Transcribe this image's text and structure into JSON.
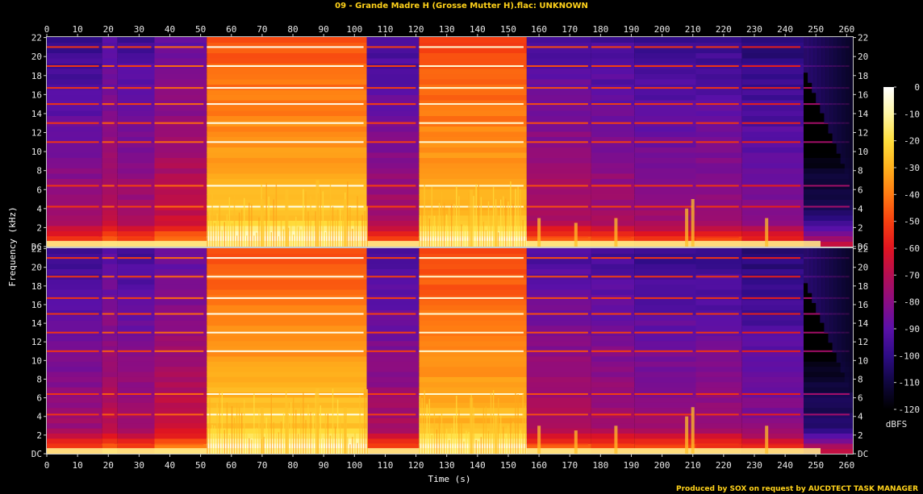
{
  "chart_data": {
    "type": "heatmap",
    "title": "09 - Grande Madre H (Grosse Mutter H).flac: UNKNOWN",
    "xlabel": "Time (s)",
    "ylabel": "Frequency (kHz)",
    "colorbar_label": "dBFS",
    "credit": "Produced by SOX on request by AUCDTECT TASK MANAGER",
    "x": {
      "min": 0,
      "max": 262,
      "ticks": [
        0,
        10,
        20,
        30,
        40,
        50,
        60,
        70,
        80,
        90,
        100,
        110,
        120,
        130,
        140,
        150,
        160,
        170,
        180,
        190,
        200,
        210,
        220,
        230,
        240,
        250,
        260
      ]
    },
    "y": {
      "min": 0,
      "max": 22.05,
      "ticks": [
        {
          "value": 0,
          "label": "DC"
        },
        {
          "value": 2,
          "label": "2"
        },
        {
          "value": 4,
          "label": "4"
        },
        {
          "value": 6,
          "label": "6"
        },
        {
          "value": 8,
          "label": "8"
        },
        {
          "value": 10,
          "label": "10"
        },
        {
          "value": 12,
          "label": "12"
        },
        {
          "value": 14,
          "label": "14"
        },
        {
          "value": 16,
          "label": "16"
        },
        {
          "value": 18,
          "label": "18"
        },
        {
          "value": 20,
          "label": "20"
        },
        {
          "value": 22,
          "label": "22"
        }
      ]
    },
    "colorbar": {
      "min": -120,
      "max": 0,
      "ticks": [
        0,
        -10,
        -20,
        -30,
        -40,
        -50,
        -60,
        -70,
        -80,
        -90,
        -100,
        -110,
        -120
      ],
      "colors": [
        "#ffffff",
        "#fff6a4",
        "#ffde3c",
        "#ffb01c",
        "#ff7a12",
        "#f6400f",
        "#e01420",
        "#b40e52",
        "#8a0d84",
        "#5a10a8",
        "#2e0c86",
        "#10073f",
        "#000000"
      ]
    },
    "channels": 2,
    "sections": [
      {
        "start": 0,
        "end": 18,
        "level": 0.4
      },
      {
        "start": 18,
        "end": 23,
        "level": 0.46
      },
      {
        "start": 23,
        "end": 35,
        "level": 0.42
      },
      {
        "start": 35,
        "end": 52,
        "level": 0.48
      },
      {
        "start": 52,
        "end": 104,
        "level": 0.82
      },
      {
        "start": 104,
        "end": 121,
        "level": 0.42
      },
      {
        "start": 121,
        "end": 156,
        "level": 0.8
      },
      {
        "start": 156,
        "end": 177,
        "level": 0.44
      },
      {
        "start": 177,
        "end": 191,
        "level": 0.42
      },
      {
        "start": 191,
        "end": 211,
        "level": 0.4
      },
      {
        "start": 211,
        "end": 226,
        "level": 0.4
      },
      {
        "start": 226,
        "end": 246,
        "level": 0.36
      },
      {
        "start": 246,
        "end": 262,
        "level": 0.22
      }
    ],
    "tonal_lines_khz": [
      1.0,
      4.2,
      6.4,
      11.0,
      13.0,
      15.0,
      16.7,
      19.0,
      21.0
    ],
    "sound_events": [
      {
        "t": 70,
        "f": 5
      },
      {
        "t": 78,
        "f": 6
      },
      {
        "t": 88,
        "f": 7
      },
      {
        "t": 97,
        "f": 5
      },
      {
        "t": 138,
        "f": 6
      },
      {
        "t": 146,
        "f": 4
      },
      {
        "t": 160,
        "f": 3
      },
      {
        "t": 172,
        "f": 2.5
      },
      {
        "t": 185,
        "f": 3
      },
      {
        "t": 208,
        "f": 4
      },
      {
        "t": 210,
        "f": 5
      },
      {
        "t": 234,
        "f": 3
      }
    ]
  }
}
